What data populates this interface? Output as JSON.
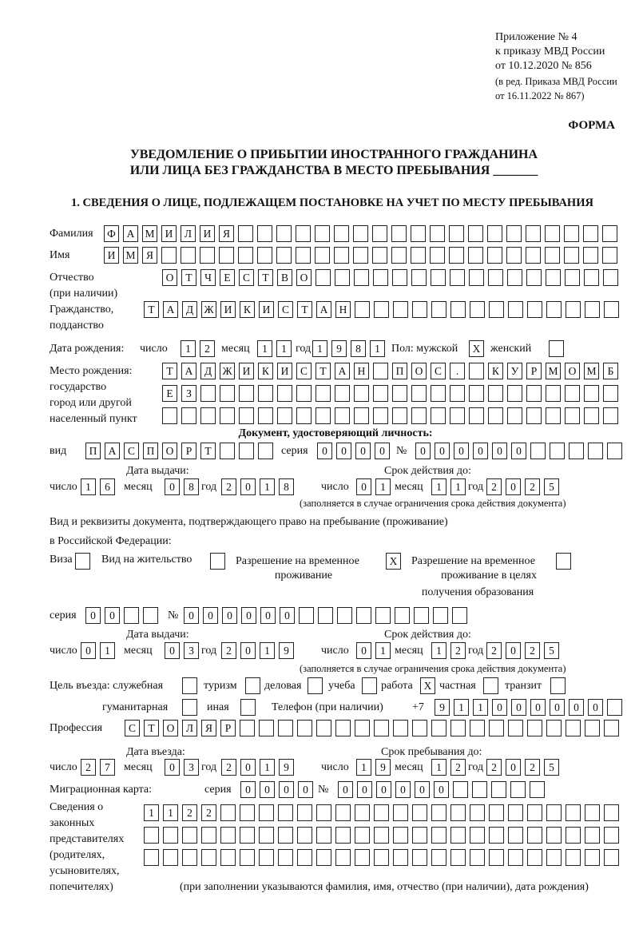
{
  "header": {
    "appendix": "Приложение № 4",
    "order": "к приказу МВД России",
    "order_date": "от 10.12.2020 № 856",
    "revision1": "(в ред. Приказа МВД России",
    "revision2": "от 16.11.2022 № 867)",
    "form_label": "ФОРМА",
    "title1": "УВЕДОМЛЕНИЕ О ПРИБЫТИИ ИНОСТРАННОГО ГРАЖДАНИНА",
    "title2": "ИЛИ ЛИЦА БЕЗ ГРАЖДАНСТВА В МЕСТО ПРЕБЫВАНИЯ _______"
  },
  "section1": {
    "heading": "1. СВЕДЕНИЯ О ЛИЦЕ, ПОДЛЕЖАЩЕМ ПОСТАНОВКЕ НА УЧЕТ ПО МЕСТУ ПРЕБЫВАНИЯ",
    "labels": {
      "surname": "Фамилия",
      "name": "Имя",
      "patronymic1": "Отчество",
      "patronymic2": "(при наличии)",
      "citizenship1": "Гражданство,",
      "citizenship2": "подданство",
      "birth_date": "Дата рождения:",
      "day": "число",
      "month": "месяц",
      "year": "год",
      "sex": "Пол: мужской",
      "female": "женский",
      "birthplace1": "Место рождения:",
      "birthplace2": "государство",
      "birthplace3": "город или другой",
      "birthplace4": "населенный пункт",
      "id_doc": "Документ, удостоверяющий личность:",
      "kind": "вид",
      "series": "серия",
      "number": "№",
      "issue_date": "Дата выдачи:",
      "valid_until": "Срок действия до:",
      "validity_note": "(заполняется в случае ограничения срока действия документа)",
      "right_doc1": "Вид и реквизиты документа, подтверждающего право на пребывание (проживание)",
      "right_doc2": "в Российской Федерации:",
      "visa": "Виза",
      "residence": "Вид на жительство",
      "temp1": "Разрешение на временное",
      "temp2": "проживание",
      "edu1": "Разрешение на временное",
      "edu2": "проживание в целях",
      "edu3": "получения образования",
      "purpose": "Цель въезда: служебная",
      "tourism": "туризм",
      "business": "деловая",
      "study": "учеба",
      "work": "работа",
      "private": "частная",
      "transit": "транзит",
      "humanitarian": "гуманитарная",
      "other": "иная",
      "phone": "Телефон (при наличии)",
      "phone_prefix": "+7",
      "profession": "Профессия",
      "entry_date": "Дата въезда:",
      "stay_until": "Срок пребывания до:",
      "migration_card": "Миграционная карта:",
      "reps1": "Сведения о",
      "reps2": "законных",
      "reps3": "представителях",
      "reps4": "(родителях,",
      "reps5": "усыновителях,",
      "reps6": "попечителях)",
      "reps_note": "(при заполнении указываются фамилия, имя, отчество (при наличии), дата рождения)"
    },
    "values": {
      "surname": "ФАМИЛИЯ",
      "name": "ИМЯ",
      "patronymic": "ОТЧЕСТВО",
      "citizenship": "ТАДЖИКИСТАН",
      "birth_day": "12",
      "birth_month": "11",
      "birth_year": "1981",
      "sex_male": "X",
      "sex_female": "",
      "birthplace_row1": "ТАДЖИКИСТАН ПОС. КУРМОМБ",
      "birthplace_row2": "ЕЗ",
      "birthplace_row3": "",
      "doc_kind": "ПАСПОРТ",
      "doc_series": "0000",
      "doc_number": "000000",
      "doc_issue_day": "16",
      "doc_issue_month": "08",
      "doc_issue_year": "2018",
      "doc_valid_day": "01",
      "doc_valid_month": "11",
      "doc_valid_year": "2025",
      "visa": "",
      "residence_permit": "",
      "temp_residence": "X",
      "temp_residence_edu": "",
      "right_series": "00",
      "right_number": "000000",
      "right_issue_day": "01",
      "right_issue_month": "03",
      "right_issue_year": "2019",
      "right_valid_day": "01",
      "right_valid_month": "12",
      "right_valid_year": "2025",
      "purpose_service": "",
      "purpose_tourism": "",
      "purpose_business": "",
      "purpose_study": "",
      "purpose_work": "X",
      "purpose_private": "",
      "purpose_transit": "",
      "purpose_humanitarian": "",
      "purpose_other": "",
      "phone": "911000000",
      "profession": "СТОЛЯР",
      "entry_day": "27",
      "entry_month": "03",
      "entry_year": "2019",
      "stay_day": "19",
      "stay_month": "12",
      "stay_year": "2025",
      "mc_series": "0000",
      "mc_number": "000000",
      "reps_row1": "1122",
      "reps_row2": "",
      "reps_row3": ""
    }
  }
}
